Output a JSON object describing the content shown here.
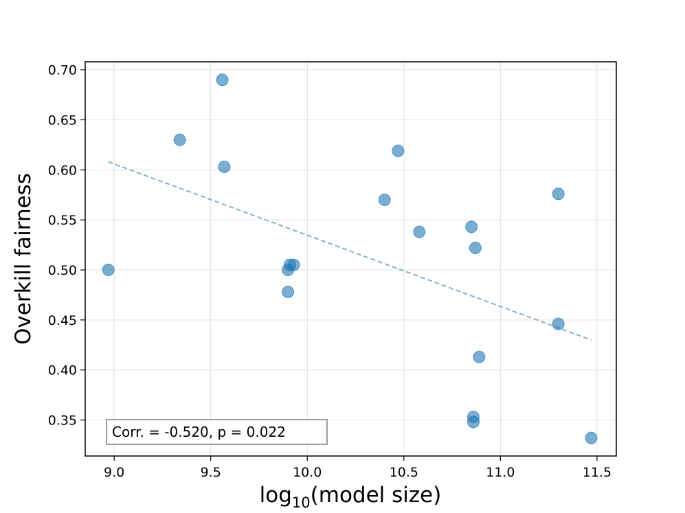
{
  "chart_data": {
    "type": "scatter",
    "title": "",
    "xlabel": "log10(model size)",
    "xlabel_parts": {
      "base": "log",
      "subscript": "10",
      "rest": "(model size)"
    },
    "ylabel": "Overkill fairness",
    "xlim": [
      8.85,
      11.6
    ],
    "ylim": [
      0.314,
      0.708
    ],
    "x_ticks": [
      9.0,
      9.5,
      10.0,
      10.5,
      11.0,
      11.5
    ],
    "x_tick_labels": [
      "9.0",
      "9.5",
      "10.0",
      "10.5",
      "11.0",
      "11.5"
    ],
    "y_ticks": [
      0.35,
      0.4,
      0.45,
      0.5,
      0.55,
      0.6,
      0.65,
      0.7
    ],
    "y_tick_labels": [
      "0.35",
      "0.40",
      "0.45",
      "0.50",
      "0.55",
      "0.60",
      "0.65",
      "0.70"
    ],
    "grid": true,
    "points": [
      {
        "x": 8.97,
        "y": 0.5
      },
      {
        "x": 9.34,
        "y": 0.63
      },
      {
        "x": 9.56,
        "y": 0.69
      },
      {
        "x": 9.57,
        "y": 0.603
      },
      {
        "x": 9.9,
        "y": 0.5
      },
      {
        "x": 9.9,
        "y": 0.478
      },
      {
        "x": 9.91,
        "y": 0.505
      },
      {
        "x": 9.93,
        "y": 0.505
      },
      {
        "x": 10.4,
        "y": 0.57
      },
      {
        "x": 10.47,
        "y": 0.619
      },
      {
        "x": 10.58,
        "y": 0.538
      },
      {
        "x": 10.85,
        "y": 0.543
      },
      {
        "x": 10.86,
        "y": 0.353
      },
      {
        "x": 10.86,
        "y": 0.348
      },
      {
        "x": 10.87,
        "y": 0.522
      },
      {
        "x": 10.89,
        "y": 0.413
      },
      {
        "x": 11.3,
        "y": 0.576
      },
      {
        "x": 11.3,
        "y": 0.446
      },
      {
        "x": 11.47,
        "y": 0.332
      }
    ],
    "trendline": {
      "x": [
        8.97,
        11.47
      ],
      "y": [
        0.608,
        0.43
      ],
      "style": "dashed"
    },
    "annotation": "Corr. = -0.520, p = 0.022",
    "colors": {
      "point": "#1f77b4",
      "trendline": "#7fb0d6",
      "grid": "#e0e0e0",
      "axis": "#000000"
    }
  }
}
